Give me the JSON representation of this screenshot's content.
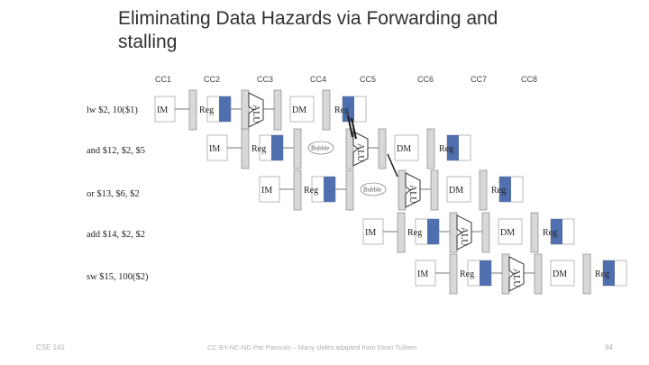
{
  "slide": {
    "title": "Eliminating Data Hazards via Forwarding and stalling",
    "footer_left": "CSE 141",
    "footer_center": "CC BY-NC-ND Pat Pannuto – Many slides adapted from Dean Tullsen",
    "page_number": "94"
  },
  "clock_cycles": [
    "CC1",
    "CC2",
    "CC3",
    "CC4",
    "CC5",
    "CC6",
    "CC7",
    "CC8"
  ],
  "instructions": [
    "lw $2, 10($1)",
    "and $12, $2, $5",
    "or $13, $6, $2",
    "add $14, $2, $2",
    "sw $15, 100($2)"
  ],
  "stage_labels": {
    "im": "IM",
    "reg": "Reg",
    "alu": "ALU",
    "dm": "DM",
    "bubble": "Bubble"
  },
  "colors": {
    "register_fill": "#4f6fae",
    "accent_line": "#1a1a1a",
    "text": "#303030"
  }
}
